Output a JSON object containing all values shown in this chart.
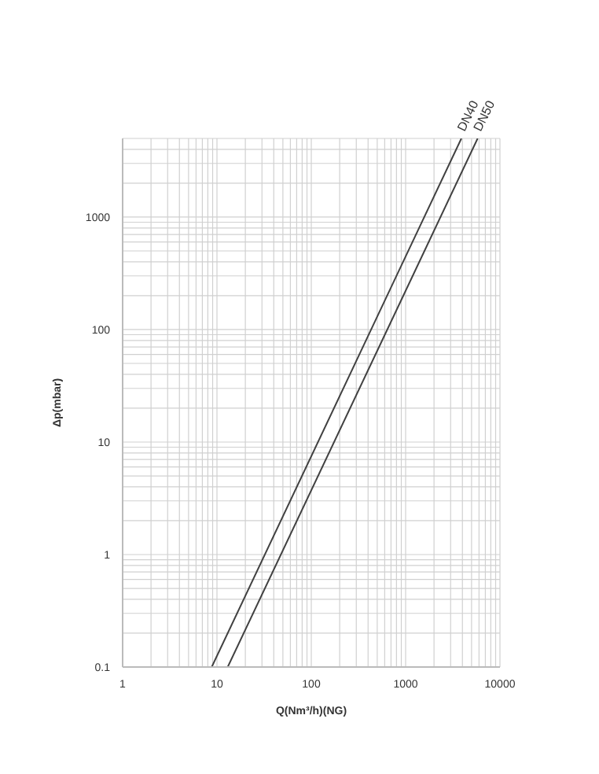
{
  "chart_data": {
    "type": "line",
    "xlabel": "Q(Nm³/h)(NG)",
    "ylabel": "Δp(mbar)",
    "log": "xy",
    "grid": true,
    "legend": false,
    "marker": "none",
    "line_style": "solid",
    "xlim": [
      1,
      10000
    ],
    "xticks": [
      1,
      10,
      100,
      1000,
      10000
    ],
    "ylim": [
      0.1,
      5000
    ],
    "yticks": [
      0.1,
      1,
      10,
      100,
      1000
    ],
    "series": [
      {
        "name": "DN40",
        "color": "#404040",
        "x": [
          8.8,
          3900
        ],
        "values": [
          0.1,
          5000
        ]
      },
      {
        "name": "DN50",
        "color": "#404040",
        "x": [
          13,
          5800
        ],
        "values": [
          0.1,
          5000
        ]
      }
    ]
  }
}
